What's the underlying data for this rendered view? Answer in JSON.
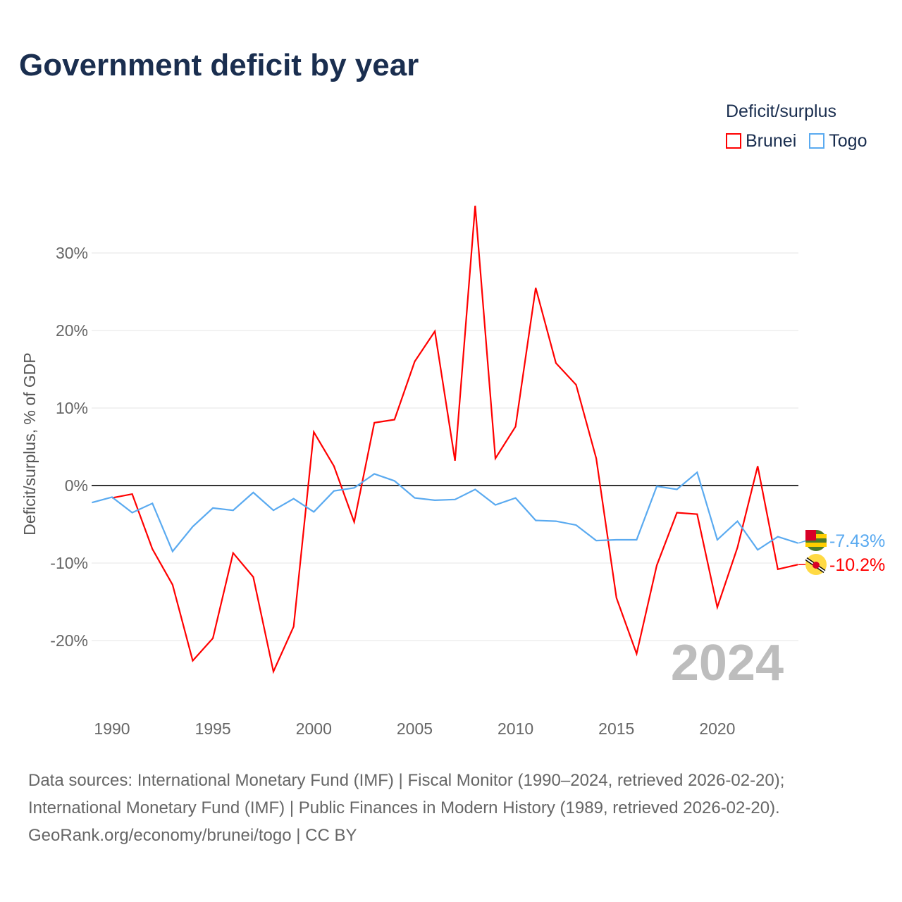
{
  "chart_data": {
    "type": "line",
    "title": "Government deficit by year",
    "ylabel": "Deficit/surplus, % of GDP",
    "xlabel": "",
    "ylim": [
      -27,
      39
    ],
    "xlim": [
      1989,
      2024
    ],
    "yticks": [
      {
        "v": 30,
        "label": "30%"
      },
      {
        "v": 20,
        "label": "20%"
      },
      {
        "v": 10,
        "label": "10%"
      },
      {
        "v": 0,
        "label": "0%"
      },
      {
        "v": -10,
        "label": "-10%"
      },
      {
        "v": -20,
        "label": "-20%"
      }
    ],
    "xticks": [
      {
        "v": 1990,
        "label": "1990"
      },
      {
        "v": 1995,
        "label": "1995"
      },
      {
        "v": 2000,
        "label": "2000"
      },
      {
        "v": 2005,
        "label": "2005"
      },
      {
        "v": 2010,
        "label": "2010"
      },
      {
        "v": 2015,
        "label": "2015"
      },
      {
        "v": 2020,
        "label": "2020"
      }
    ],
    "legend_title": "Deficit/surplus",
    "legend_position": "top-right",
    "year_label": "2024",
    "series": [
      {
        "name": "Brunei",
        "color": "#ff0000",
        "end_label": "-10.2%",
        "start": 1990,
        "values": [
          -1.6,
          -1.1,
          -8.2,
          -12.8,
          -22.6,
          -19.7,
          -8.7,
          -11.8,
          -24.0,
          -18.2,
          6.9,
          2.5,
          -4.7,
          8.1,
          8.5,
          16.0,
          19.9,
          3.2,
          36.1,
          3.5,
          7.6,
          25.5,
          15.8,
          13.0,
          3.5,
          -14.5,
          -21.7,
          -10.3,
          -3.5,
          -3.7,
          -15.7,
          -8.0,
          2.5,
          -10.8,
          -10.2
        ]
      },
      {
        "name": "Togo",
        "color": "#5aaaf0",
        "end_label": "-7.43%",
        "start": 1989,
        "values": [
          -2.2,
          -1.5,
          -3.5,
          -2.3,
          -8.5,
          -5.3,
          -2.9,
          -3.2,
          -0.9,
          -3.2,
          -1.7,
          -3.4,
          -0.7,
          -0.3,
          1.5,
          0.6,
          -1.6,
          -1.9,
          -1.8,
          -0.5,
          -2.5,
          -1.6,
          -4.5,
          -4.6,
          -5.1,
          -7.1,
          -7.0,
          -7.0,
          -0.1,
          -0.5,
          1.7,
          -7.0,
          -4.6,
          -8.3,
          -6.6,
          -7.43
        ]
      }
    ]
  },
  "footer": {
    "line1": "Data sources: International Monetary Fund (IMF) | Fiscal Monitor (1990–2024, retrieved 2026-02-20);",
    "line2": "International Monetary Fund (IMF) | Public Finances in Modern History (1989, retrieved 2026-02-20).",
    "line3": "GeoRank.org/economy/brunei/togo | CC BY"
  }
}
